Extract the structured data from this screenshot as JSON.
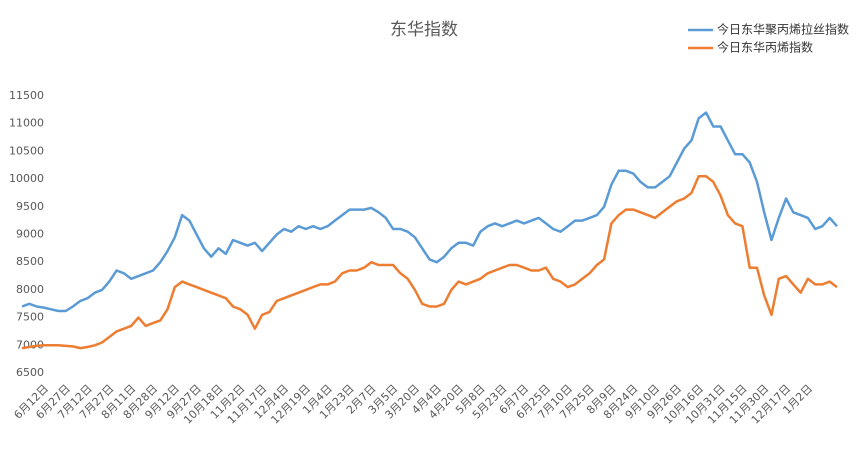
{
  "chart_data": {
    "type": "line",
    "title": "东华指数",
    "categories": [
      null,
      null,
      null,
      "6月12日",
      null,
      null,
      "6月27日",
      null,
      null,
      "7月12日",
      null,
      null,
      "7月27日",
      null,
      null,
      "8月11日",
      null,
      null,
      "8月28日",
      null,
      null,
      "9月12日",
      null,
      null,
      "9月27日",
      null,
      null,
      "10月18日",
      null,
      null,
      "11月2日",
      null,
      null,
      "11月17日",
      null,
      null,
      "12月4日",
      null,
      null,
      "12月19日",
      null,
      null,
      "1月4日",
      null,
      null,
      "1月23日",
      null,
      null,
      "2月7日",
      null,
      null,
      "3月5日",
      null,
      null,
      "3月20日",
      null,
      null,
      "4月4日",
      null,
      null,
      "4月20日",
      null,
      null,
      "5月8日",
      null,
      null,
      "5月23日",
      null,
      null,
      "6月7日",
      null,
      null,
      "6月25日",
      null,
      null,
      "7月10日",
      null,
      null,
      "7月25日",
      null,
      null,
      "8月9日",
      null,
      null,
      "8月24日",
      null,
      null,
      "9月10日",
      null,
      null,
      "9月26日",
      null,
      null,
      "10月16日",
      null,
      null,
      "10月31日",
      null,
      null,
      "11月15日",
      null,
      null,
      "11月30日",
      null,
      null,
      "12月17日",
      null,
      null,
      "1月2日",
      null,
      null,
      null,
      null
    ],
    "series": [
      {
        "name": "今日东华聚丙烯拉丝指数",
        "color": "#5b9bd5",
        "values": [
          7700,
          7750,
          7700,
          7680,
          7650,
          7620,
          7620,
          7700,
          7800,
          7850,
          7950,
          8000,
          8150,
          8350,
          8300,
          8200,
          8250,
          8300,
          8350,
          8500,
          8700,
          8950,
          9350,
          9250,
          9000,
          8750,
          8600,
          8750,
          8650,
          8900,
          8850,
          8800,
          8850,
          8700,
          8850,
          9000,
          9100,
          9050,
          9150,
          9100,
          9150,
          9100,
          9150,
          9250,
          9350,
          9450,
          9450,
          9450,
          9480,
          9400,
          9300,
          9100,
          9100,
          9050,
          8950,
          8750,
          8550,
          8500,
          8600,
          8750,
          8850,
          8850,
          8800,
          9050,
          9150,
          9200,
          9150,
          9200,
          9250,
          9200,
          9250,
          9300,
          9200,
          9100,
          9050,
          9150,
          9250,
          9250,
          9300,
          9350,
          9500,
          9900,
          10150,
          10150,
          10100,
          9950,
          9850,
          9850,
          9950,
          10050,
          10300,
          10550,
          10700,
          11100,
          11200,
          10950,
          10950,
          10700,
          10450,
          10450,
          10300,
          9950,
          9400,
          8900,
          9300,
          9650,
          9400,
          9350,
          9300,
          9100,
          9150,
          9300,
          9150
        ]
      },
      {
        "name": "今日东华丙烯指数",
        "color": "#ed7d31",
        "values": [
          6950,
          6970,
          6990,
          7000,
          7000,
          7000,
          6990,
          6980,
          6950,
          6970,
          7000,
          7050,
          7150,
          7250,
          7300,
          7350,
          7500,
          7350,
          7400,
          7450,
          7650,
          8050,
          8150,
          8100,
          8050,
          8000,
          7950,
          7900,
          7850,
          7700,
          7650,
          7550,
          7300,
          7550,
          7600,
          7800,
          7850,
          7900,
          7950,
          8000,
          8050,
          8100,
          8100,
          8150,
          8300,
          8350,
          8350,
          8400,
          8500,
          8450,
          8450,
          8450,
          8300,
          8200,
          8000,
          7750,
          7700,
          7700,
          7750,
          8000,
          8150,
          8100,
          8150,
          8200,
          8300,
          8350,
          8400,
          8450,
          8450,
          8400,
          8350,
          8350,
          8400,
          8200,
          8150,
          8050,
          8100,
          8200,
          8300,
          8450,
          8550,
          9200,
          9350,
          9450,
          9450,
          9400,
          9350,
          9300,
          9400,
          9500,
          9600,
          9650,
          9750,
          10050,
          10050,
          9950,
          9700,
          9350,
          9200,
          9150,
          8400,
          8400,
          7900,
          7550,
          8200,
          8250,
          8100,
          7950,
          8200,
          8100,
          8100,
          8150,
          8050
        ]
      }
    ],
    "ylim": [
      6500,
      11500
    ],
    "yticks": [
      6500,
      7000,
      7500,
      8000,
      8500,
      9000,
      9500,
      10000,
      10500,
      11000,
      11500
    ],
    "grid": false,
    "legend": "top-right"
  }
}
